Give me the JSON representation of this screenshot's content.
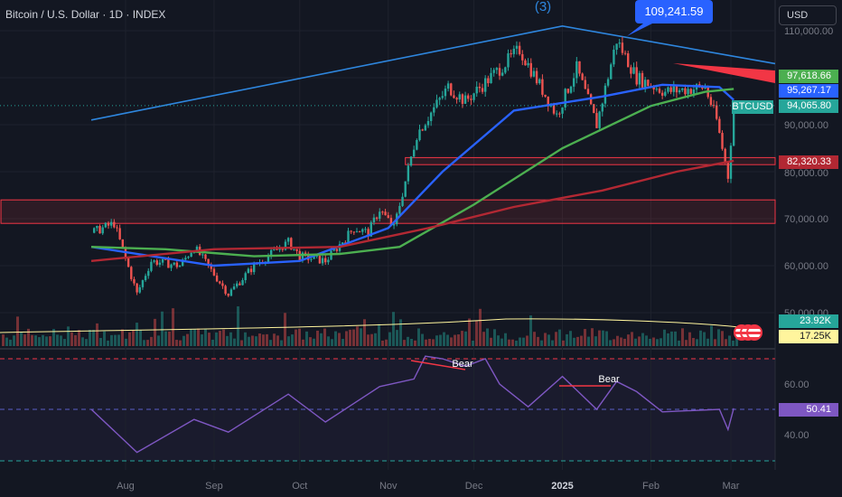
{
  "header": {
    "title": "Bitcoin / U.S. Dollar · 1D · INDEX",
    "currency_button": "USD"
  },
  "annotations": {
    "wave_label": "(3)",
    "price_callout": "109,241.59",
    "rsi_bear_labels": [
      "Bear",
      "Bear"
    ]
  },
  "price_tags": [
    {
      "name": "ma-green-value",
      "text": "97,618.66",
      "color": "#4caf50"
    },
    {
      "name": "ma-blue-value",
      "text": "95,267.17",
      "color": "#2962ff"
    },
    {
      "name": "symbol-tag",
      "text": "BTCUSD",
      "color": "#26a69a"
    },
    {
      "name": "last-price",
      "text": "94,065.80",
      "color": "#26a69a"
    },
    {
      "name": "ma-red-value",
      "text": "82,320.33",
      "color": "#b22833"
    },
    {
      "name": "volume-value",
      "text": "23.92K",
      "color": "#26a69a"
    },
    {
      "name": "volume-ma-value",
      "text": "17.25K",
      "color": "#fff59d"
    },
    {
      "name": "rsi-value",
      "text": "50.41",
      "color": "#7e57c2"
    }
  ],
  "chart_data": {
    "type": "candlestick",
    "x_axis": {
      "tick_labels": [
        "Aug",
        "Sep",
        "Oct",
        "Nov",
        "Dec",
        "2025",
        "Feb",
        "Mar"
      ]
    },
    "price_axis": {
      "tick_labels": [
        "110,000.00",
        "90,000.00",
        "80,000.00",
        "70,000.00",
        "60,000.00",
        "50,000.00"
      ],
      "range": [
        47000,
        115000
      ]
    },
    "rsi_axis": {
      "tick_labels": [
        "60.00",
        "40.00"
      ],
      "range": [
        25,
        80
      ],
      "bands": [
        70,
        50,
        30
      ]
    },
    "price_path": [
      [
        "2024-07-20",
        67000
      ],
      [
        "2024-07-28",
        69000
      ],
      [
        "2024-08-05",
        54000
      ],
      [
        "2024-08-10",
        61000
      ],
      [
        "2024-08-20",
        60000
      ],
      [
        "2024-08-25",
        64000
      ],
      [
        "2024-09-06",
        54000
      ],
      [
        "2024-09-15",
        60000
      ],
      [
        "2024-09-27",
        65000
      ],
      [
        "2024-10-01",
        62000
      ],
      [
        "2024-10-10",
        61000
      ],
      [
        "2024-10-20",
        68000
      ],
      [
        "2024-10-25",
        67000
      ],
      [
        "2024-10-29",
        72000
      ],
      [
        "2024-11-03",
        68000
      ],
      [
        "2024-11-11",
        88000
      ],
      [
        "2024-11-22",
        98000
      ],
      [
        "2024-11-28",
        95000
      ],
      [
        "2024-12-05",
        99000
      ],
      [
        "2024-12-17",
        106000
      ],
      [
        "2024-12-30",
        92000
      ],
      [
        "2025-01-06",
        102000
      ],
      [
        "2025-01-13",
        90000
      ],
      [
        "2025-01-20",
        108000
      ],
      [
        "2025-01-27",
        100000
      ],
      [
        "2025-02-06",
        97000
      ],
      [
        "2025-02-20",
        98000
      ],
      [
        "2025-02-24",
        91000
      ],
      [
        "2025-02-28",
        79000
      ],
      [
        "2025-03-02",
        94065.8
      ]
    ],
    "moving_averages": [
      {
        "color": "#2962ff",
        "points": [
          [
            "2024-07-20",
            64000
          ],
          [
            "2024-09-01",
            60000
          ],
          [
            "2024-10-01",
            61000
          ],
          [
            "2024-11-01",
            68000
          ],
          [
            "2024-11-20",
            80000
          ],
          [
            "2024-12-15",
            93000
          ],
          [
            "2025-01-15",
            96000
          ],
          [
            "2025-02-05",
            98500
          ],
          [
            "2025-02-25",
            98000
          ],
          [
            "2025-03-02",
            95267.17
          ]
        ]
      },
      {
        "color": "#4caf50",
        "points": [
          [
            "2024-07-20",
            64000
          ],
          [
            "2024-08-15",
            63500
          ],
          [
            "2024-09-15",
            62000
          ],
          [
            "2024-10-15",
            62500
          ],
          [
            "2024-11-05",
            64000
          ],
          [
            "2024-12-01",
            73000
          ],
          [
            "2025-01-01",
            85000
          ],
          [
            "2025-02-01",
            94000
          ],
          [
            "2025-02-20",
            97000
          ],
          [
            "2025-03-02",
            97618.66
          ]
        ]
      },
      {
        "color": "#b22833",
        "points": [
          [
            "2024-07-20",
            61000
          ],
          [
            "2024-09-01",
            63500
          ],
          [
            "2024-10-15",
            64000
          ],
          [
            "2024-11-15",
            68000
          ],
          [
            "2024-12-15",
            72500
          ],
          [
            "2025-01-15",
            76000
          ],
          [
            "2025-02-10",
            80000
          ],
          [
            "2025-03-02",
            82320.33
          ]
        ]
      }
    ],
    "trendlines": [
      {
        "color": "#2e86de",
        "points": [
          [
            "2024-07-20",
            91000
          ],
          [
            "2025-01-01",
            111000
          ],
          [
            "2025-03-20",
            103000
          ]
        ]
      }
    ],
    "zones": [
      {
        "from": [
          "2024-11-07",
          83000
        ],
        "to": [
          "2025-03-20",
          81500
        ]
      },
      {
        "from": [
          "2024-07-20",
          74000
        ],
        "to": [
          "2025-03-20",
          69000
        ]
      }
    ],
    "rsi_path": [
      [
        "2024-07-20",
        50
      ],
      [
        "2024-08-05",
        33
      ],
      [
        "2024-08-25",
        46
      ],
      [
        "2024-09-06",
        41
      ],
      [
        "2024-09-27",
        56
      ],
      [
        "2024-10-10",
        45
      ],
      [
        "2024-10-29",
        59
      ],
      [
        "2024-11-10",
        62
      ],
      [
        "2024-11-14",
        71
      ],
      [
        "2024-11-20",
        70
      ],
      [
        "2024-11-28",
        67
      ],
      [
        "2024-12-05",
        70
      ],
      [
        "2024-12-10",
        60
      ],
      [
        "2024-12-20",
        51
      ],
      [
        "2025-01-01",
        63
      ],
      [
        "2025-01-13",
        50
      ],
      [
        "2025-01-20",
        61
      ],
      [
        "2025-01-27",
        57
      ],
      [
        "2025-02-05",
        49
      ],
      [
        "2025-02-25",
        50
      ],
      [
        "2025-02-28",
        42
      ],
      [
        "2025-03-02",
        50.41
      ]
    ],
    "last_price": 94065.8,
    "price_callout_value": 109241.59
  }
}
